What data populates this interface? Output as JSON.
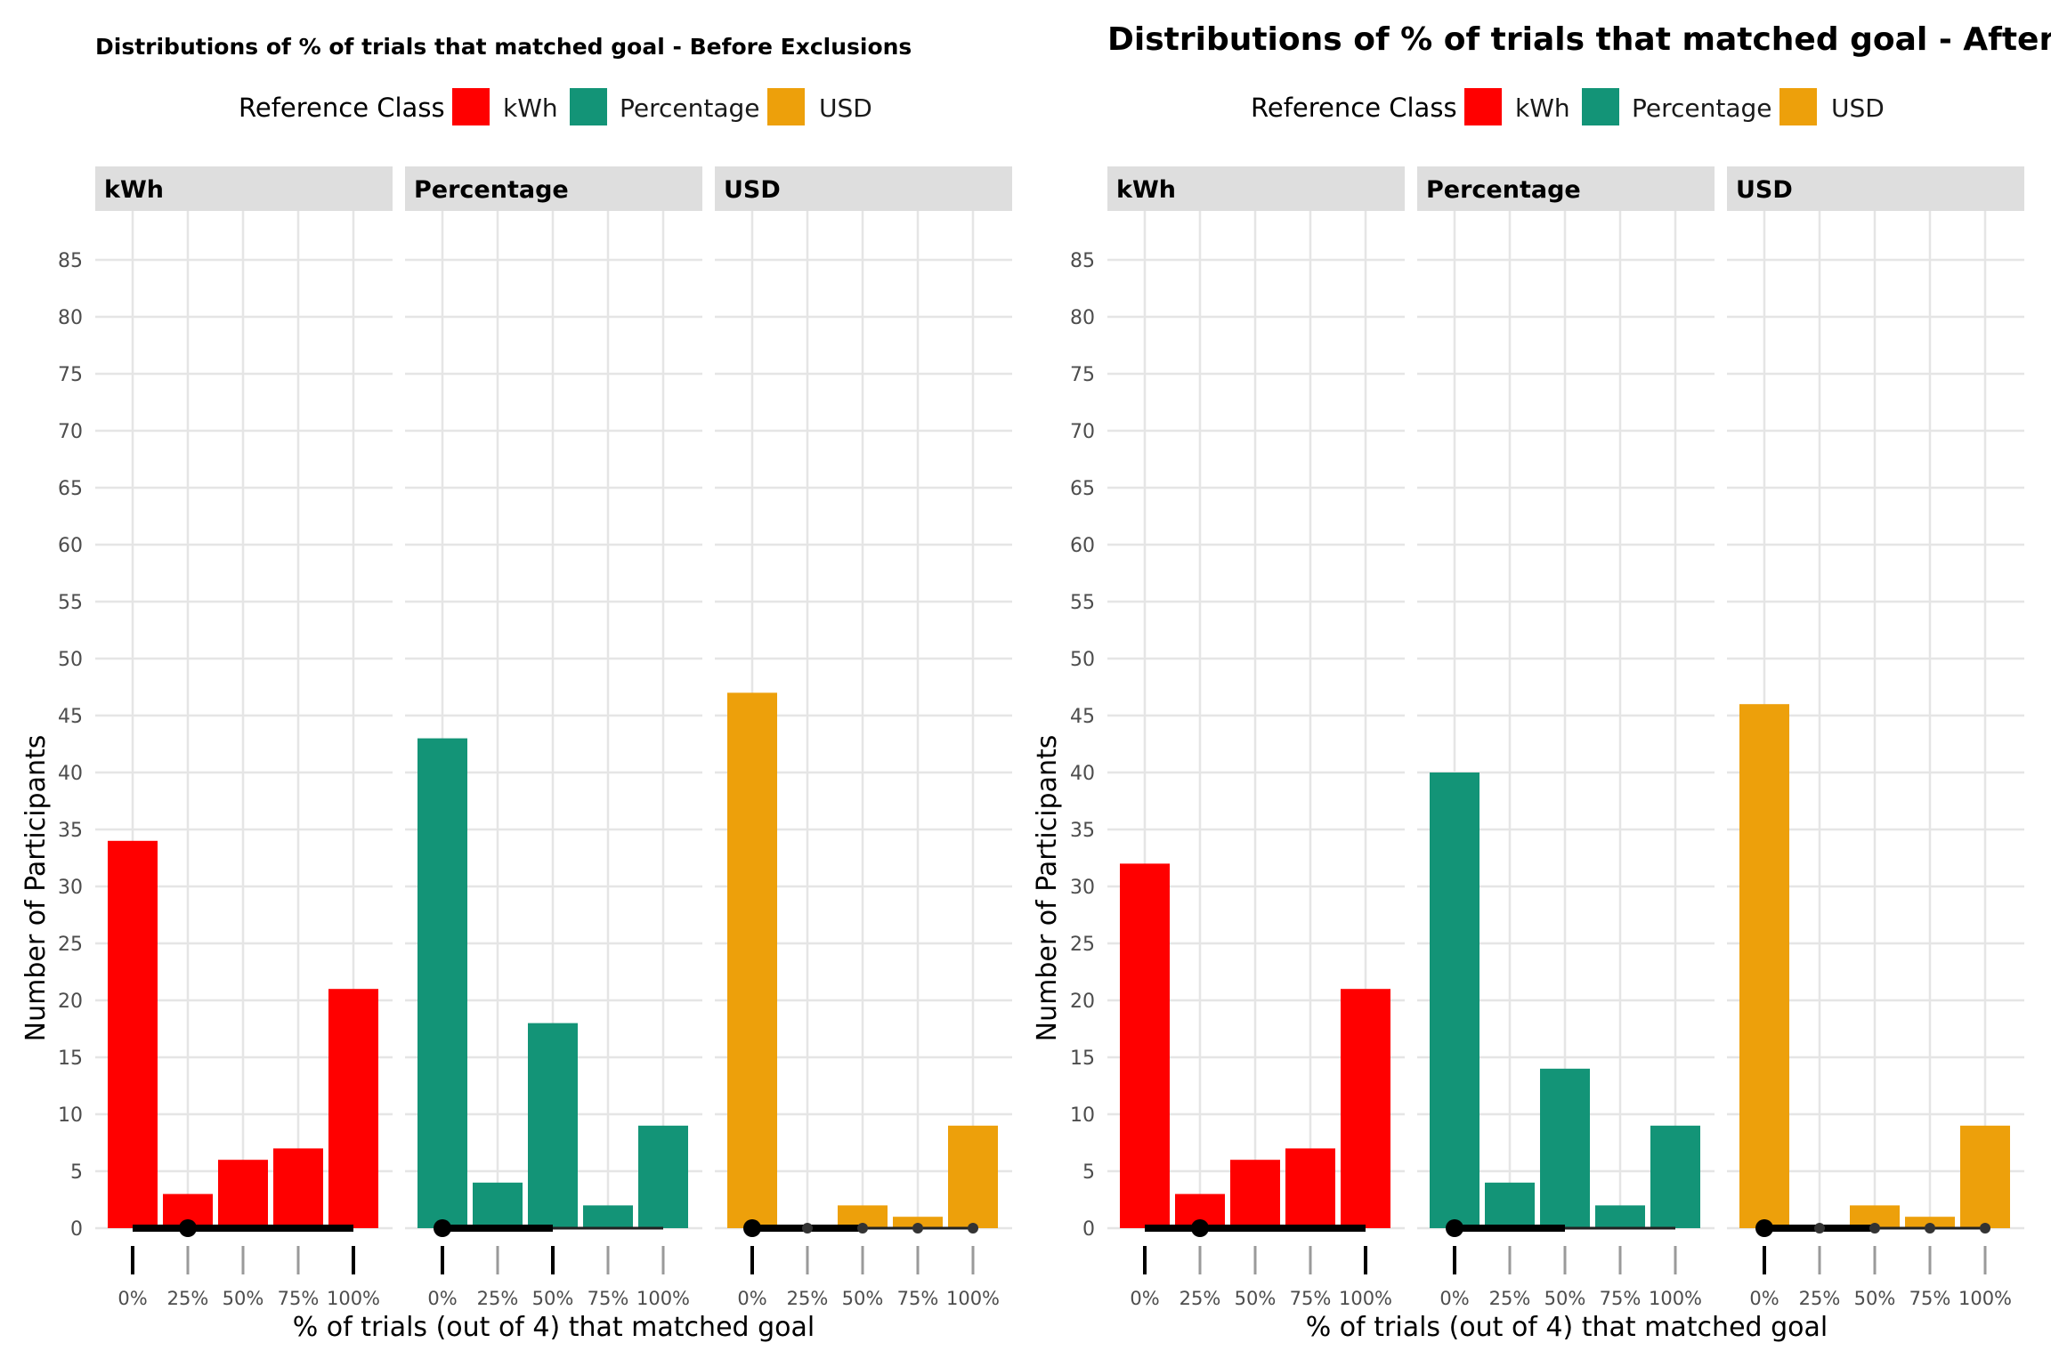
{
  "colors": {
    "kWh": "#ff0000",
    "Percentage": "#139477",
    "USD": "#eda00b"
  },
  "chart_data": [
    {
      "type": "bar",
      "title": "Distributions of % of trials that matched goal - Before Exclusions",
      "legend": {
        "title": "Reference Class",
        "entries": [
          "kWh",
          "Percentage",
          "USD"
        ],
        "placement": "top"
      },
      "xlabel": "% of trials (out of 4) that matched goal",
      "ylabel": "Number of Participants",
      "ylim": [
        0,
        85
      ],
      "yticks": [
        0,
        5,
        10,
        15,
        20,
        25,
        30,
        35,
        40,
        45,
        50,
        55,
        60,
        65,
        70,
        75,
        80,
        85
      ],
      "categories": [
        "0%",
        "25%",
        "50%",
        "75%",
        "100%"
      ],
      "grid": true,
      "facets": [
        {
          "name": "kWh",
          "values": [
            34,
            3,
            6,
            7,
            21
          ],
          "summary": {
            "median": "25%",
            "range": [
              "0%",
              "100%"
            ]
          }
        },
        {
          "name": "Percentage",
          "values": [
            43,
            4,
            18,
            2,
            9
          ],
          "summary": {
            "median": "0%",
            "range": [
              "0%",
              "100%"
            ]
          }
        },
        {
          "name": "USD",
          "values": [
            47,
            0,
            2,
            1,
            9
          ],
          "summary": {
            "median": "0%",
            "range": [
              "0%",
              "100%"
            ]
          }
        }
      ]
    },
    {
      "type": "bar",
      "title": "Distributions of % of trials that matched goal - After Ex",
      "legend": {
        "title": "Reference Class",
        "entries": [
          "kWh",
          "Percentage",
          "USD"
        ],
        "placement": "top"
      },
      "xlabel": "% of trials (out of 4) that matched goal",
      "ylabel": "Number of Participants",
      "ylim": [
        0,
        85
      ],
      "yticks": [
        0,
        5,
        10,
        15,
        20,
        25,
        30,
        35,
        40,
        45,
        50,
        55,
        60,
        65,
        70,
        75,
        80,
        85
      ],
      "categories": [
        "0%",
        "25%",
        "50%",
        "75%",
        "100%"
      ],
      "grid": true,
      "facets": [
        {
          "name": "kWh",
          "values": [
            32,
            3,
            6,
            7,
            21
          ],
          "summary": {
            "median": "25%",
            "range": [
              "0%",
              "100%"
            ]
          }
        },
        {
          "name": "Percentage",
          "values": [
            40,
            4,
            14,
            2,
            9
          ],
          "summary": {
            "median": "0%",
            "range": [
              "0%",
              "100%"
            ]
          }
        },
        {
          "name": "USD",
          "values": [
            46,
            0,
            2,
            1,
            9
          ],
          "summary": {
            "median": "0%",
            "range": [
              "0%",
              "100%"
            ]
          }
        }
      ]
    }
  ]
}
